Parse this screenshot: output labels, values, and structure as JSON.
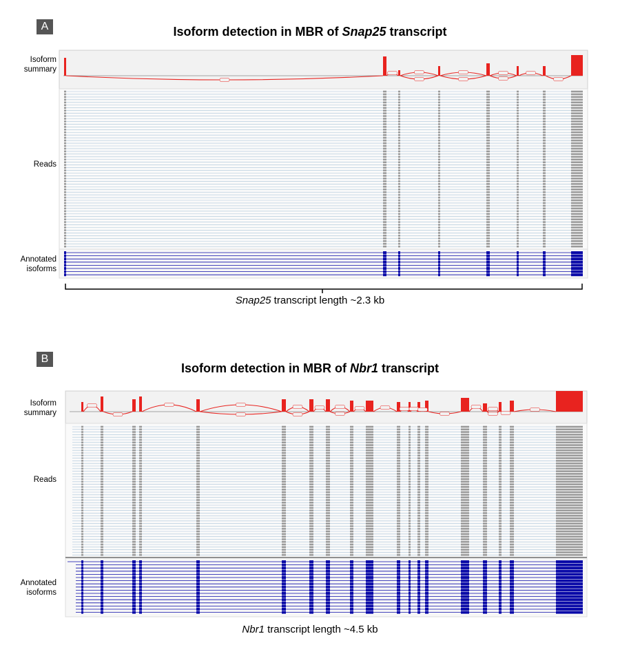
{
  "panels": [
    {
      "label": "A",
      "title_prefix": "Isoform detection in MBR of ",
      "gene": "Snap25",
      "title_suffix": " transcript",
      "tracks": {
        "summary": "Isoform\nsummary",
        "reads": "Reads",
        "annotated": "Annotated\nisoforms"
      },
      "caption_gene": "Snap25",
      "caption_rest": " transcript length ~2.3 kb"
    },
    {
      "label": "B",
      "title_prefix": "Isoform detection in MBR of ",
      "gene": "Nbr1",
      "title_suffix": " transcript",
      "tracks": {
        "summary": "Isoform\nsummary",
        "reads": "Reads",
        "annotated": "Annotated\nisoforms"
      },
      "caption_gene": "Nbr1",
      "caption_rest": " transcript length ~4.5 kb"
    }
  ],
  "colors": {
    "coverage": "#e8231f",
    "reads": "#9a9a9a",
    "read_line": "#a9c4d8",
    "isoform": "#0a0aa8",
    "track_bg": "#f2f2f2"
  }
}
